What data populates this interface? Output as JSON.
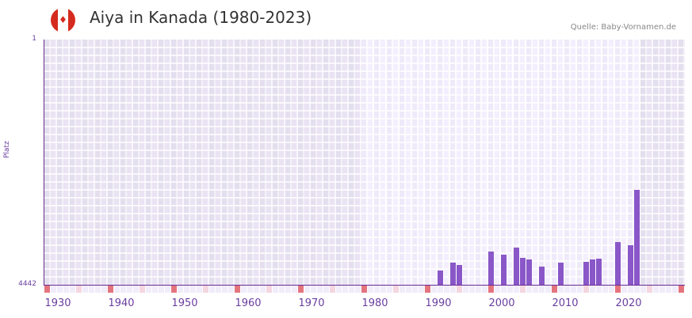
{
  "header": {
    "title": "Aiya in Kanada (1980-2023)",
    "source": "Quelle: Baby-Vornamen.de",
    "flag_icon": "canada-flag-icon"
  },
  "colors": {
    "bar": "#8a57c8",
    "axis": "#6a2c91",
    "bg_out_of_range": "#e4dfee",
    "bg_in_range": "#efeaf9",
    "marker_decade": "#e3747d",
    "marker_half": "#f4d6e0",
    "marker_other": "#f1ecfa"
  },
  "chart_data": {
    "type": "bar",
    "title": "Aiya in Kanada (1980-2023)",
    "xlabel": "",
    "ylabel": "Platz",
    "ylim": [
      4442,
      1
    ],
    "y_inverted": true,
    "y_ticks": [
      "1",
      "4442"
    ],
    "x_range": [
      1928,
      2028
    ],
    "x_ticks": [
      "1930",
      "1940",
      "1950",
      "1960",
      "1970",
      "1980",
      "1990",
      "2000",
      "2010",
      "2020"
    ],
    "data_range_highlight": [
      1978,
      2021
    ],
    "grid": true,
    "legend": null,
    "categories": [
      1990,
      1992,
      1993,
      1998,
      2000,
      2002,
      2003,
      2004,
      2006,
      2009,
      2013,
      2014,
      2015,
      2018,
      2020,
      2021
    ],
    "values": [
      4184,
      4041,
      4084,
      3840,
      3898,
      3769,
      3955,
      3984,
      4112,
      4041,
      4027,
      3984,
      3969,
      3668,
      3726,
      2723
    ]
  },
  "axis": {
    "y_top": "1",
    "y_bottom": "4442",
    "y_title": "Platz",
    "x_labels": [
      "1930",
      "1940",
      "1950",
      "1960",
      "1970",
      "1980",
      "1990",
      "2000",
      "2010",
      "2020"
    ]
  }
}
